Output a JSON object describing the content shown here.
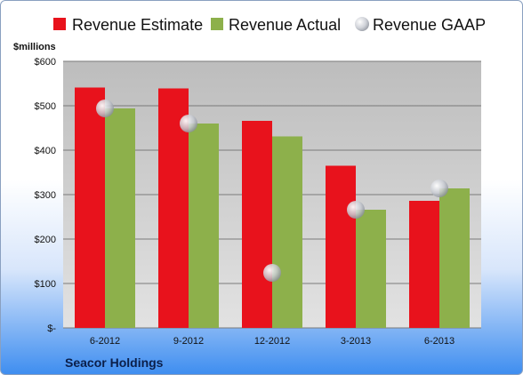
{
  "chart_data": {
    "type": "bar",
    "ylabel": "$millions",
    "ylim": [
      0,
      600
    ],
    "yticks": [
      {
        "value": 0,
        "label": "$-"
      },
      {
        "value": 100,
        "label": "$100"
      },
      {
        "value": 200,
        "label": "$200"
      },
      {
        "value": 300,
        "label": "$300"
      },
      {
        "value": 400,
        "label": "$400"
      },
      {
        "value": 500,
        "label": "$500"
      },
      {
        "value": 600,
        "label": "$600"
      }
    ],
    "categories": [
      "6-2012",
      "9-2012",
      "12-2012",
      "3-2013",
      "6-2013"
    ],
    "series": [
      {
        "name": "Revenue Estimate",
        "kind": "bar",
        "color": "#e8121c",
        "values": [
          541,
          539,
          466,
          365,
          286
        ]
      },
      {
        "name": "Revenue Actual",
        "kind": "bar",
        "color": "#8db04b",
        "values": [
          494,
          460,
          431,
          266,
          314
        ]
      },
      {
        "name": "Revenue GAAP",
        "kind": "marker",
        "color": "#c8cdd6",
        "values": [
          494,
          460,
          124,
          266,
          314
        ]
      }
    ],
    "legend_position": "top",
    "grid": true,
    "company": "Seacor Holdings"
  }
}
